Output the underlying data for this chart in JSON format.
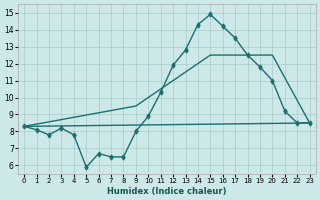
{
  "title": "",
  "xlabel": "Humidex (Indice chaleur)",
  "ylabel": "",
  "bg_color": "#cce8e8",
  "line_color": "#1a7070",
  "xlim": [
    -0.5,
    23.5
  ],
  "ylim": [
    5.5,
    15.5
  ],
  "xticks": [
    0,
    1,
    2,
    3,
    4,
    5,
    6,
    7,
    8,
    9,
    10,
    11,
    12,
    13,
    14,
    15,
    16,
    17,
    18,
    19,
    20,
    21,
    22,
    23
  ],
  "yticks": [
    6,
    7,
    8,
    9,
    10,
    11,
    12,
    13,
    14,
    15
  ],
  "line1_x": [
    0,
    1,
    2,
    3,
    4,
    5,
    6,
    7,
    8,
    9,
    10,
    11,
    12,
    13,
    14,
    15,
    16,
    17,
    18,
    19,
    20,
    21,
    22,
    23
  ],
  "line1_y": [
    8.3,
    8.1,
    7.8,
    8.2,
    7.8,
    5.9,
    6.7,
    6.5,
    6.5,
    8.0,
    8.9,
    10.3,
    11.9,
    12.8,
    14.3,
    14.9,
    14.2,
    13.5,
    12.5,
    11.8,
    11.0,
    9.2,
    8.5,
    8.5
  ],
  "line2_x": [
    0,
    23
  ],
  "line2_y": [
    8.3,
    8.5
  ],
  "line3_x": [
    0,
    9,
    15,
    20,
    23
  ],
  "line3_y": [
    8.3,
    9.5,
    12.5,
    12.5,
    8.5
  ],
  "grid_color": "#aacccc"
}
